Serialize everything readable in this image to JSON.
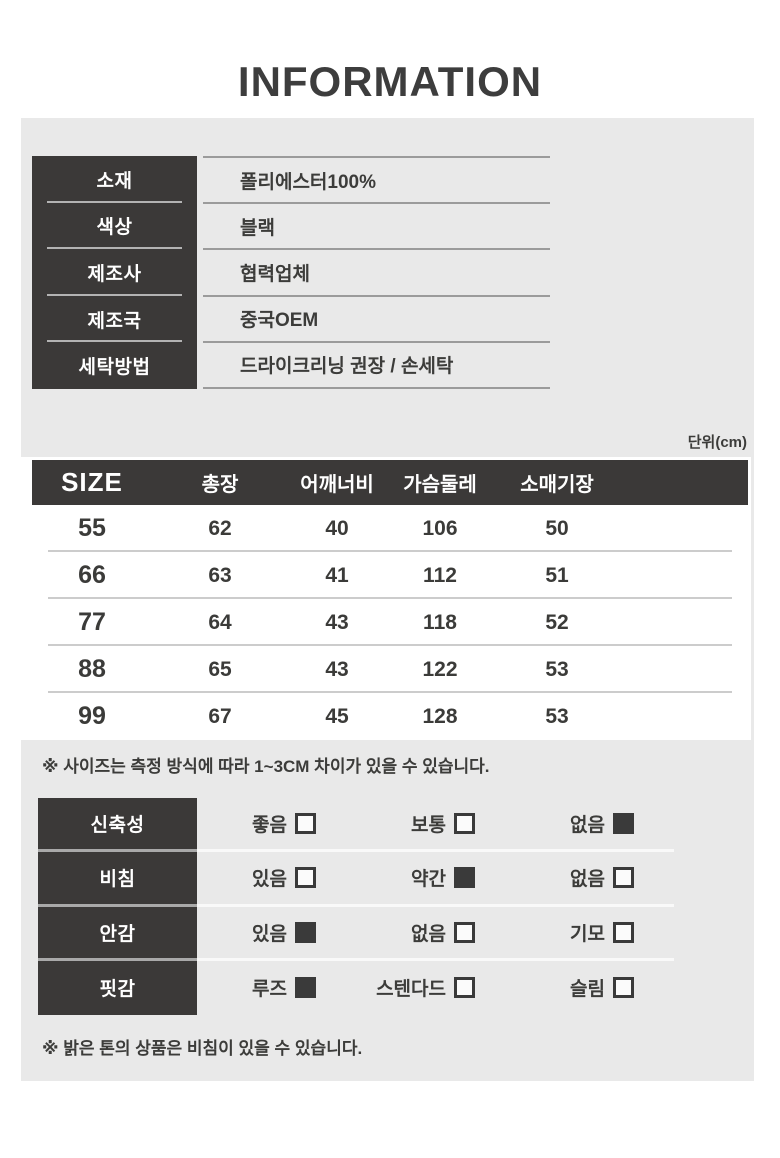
{
  "title": "INFORMATION",
  "colors": {
    "dark": "#3b3938",
    "panel_gray": "#e9e9e9",
    "text": "#3c3c3a",
    "value_line": "#9b9b9b",
    "row_separator": "#cccccc"
  },
  "info_table": {
    "rows": [
      {
        "label": "소재",
        "value": "폴리에스터100%"
      },
      {
        "label": "색상",
        "value": "블랙"
      },
      {
        "label": "제조사",
        "value": "협력업체"
      },
      {
        "label": "제조국",
        "value": "중국OEM"
      },
      {
        "label": "세탁방법",
        "value": "드라이크리닝 권장 / 손세탁"
      }
    ]
  },
  "size_table": {
    "unit_label": "단위(cm)",
    "headers": [
      "SIZE",
      "총장",
      "어깨너비",
      "가슴둘레",
      "소매기장"
    ],
    "rows": [
      {
        "size": "55",
        "values": [
          "62",
          "40",
          "106",
          "50"
        ]
      },
      {
        "size": "66",
        "values": [
          "63",
          "41",
          "112",
          "51"
        ]
      },
      {
        "size": "77",
        "values": [
          "64",
          "43",
          "118",
          "52"
        ]
      },
      {
        "size": "88",
        "values": [
          "65",
          "43",
          "122",
          "53"
        ]
      },
      {
        "size": "99",
        "values": [
          "67",
          "45",
          "128",
          "53"
        ]
      }
    ],
    "note": "※ 사이즈는 측정 방식에 따라 1~3CM 차이가 있을 수 있습니다."
  },
  "features_table": {
    "rows": [
      {
        "label": "신축성",
        "options": [
          {
            "text": "좋음",
            "checked": false
          },
          {
            "text": "보통",
            "checked": false
          },
          {
            "text": "없음",
            "checked": true
          }
        ]
      },
      {
        "label": "비침",
        "options": [
          {
            "text": "있음",
            "checked": false
          },
          {
            "text": "약간",
            "checked": true
          },
          {
            "text": "없음",
            "checked": false
          }
        ]
      },
      {
        "label": "안감",
        "options": [
          {
            "text": "있음",
            "checked": true
          },
          {
            "text": "없음",
            "checked": false
          },
          {
            "text": "기모",
            "checked": false
          }
        ]
      },
      {
        "label": "핏감",
        "options": [
          {
            "text": "루즈",
            "checked": true
          },
          {
            "text": "스텐다드",
            "checked": false
          },
          {
            "text": "슬림",
            "checked": false
          }
        ]
      }
    ],
    "note": "※ 밝은 톤의 상품은 비침이 있을 수 있습니다."
  }
}
